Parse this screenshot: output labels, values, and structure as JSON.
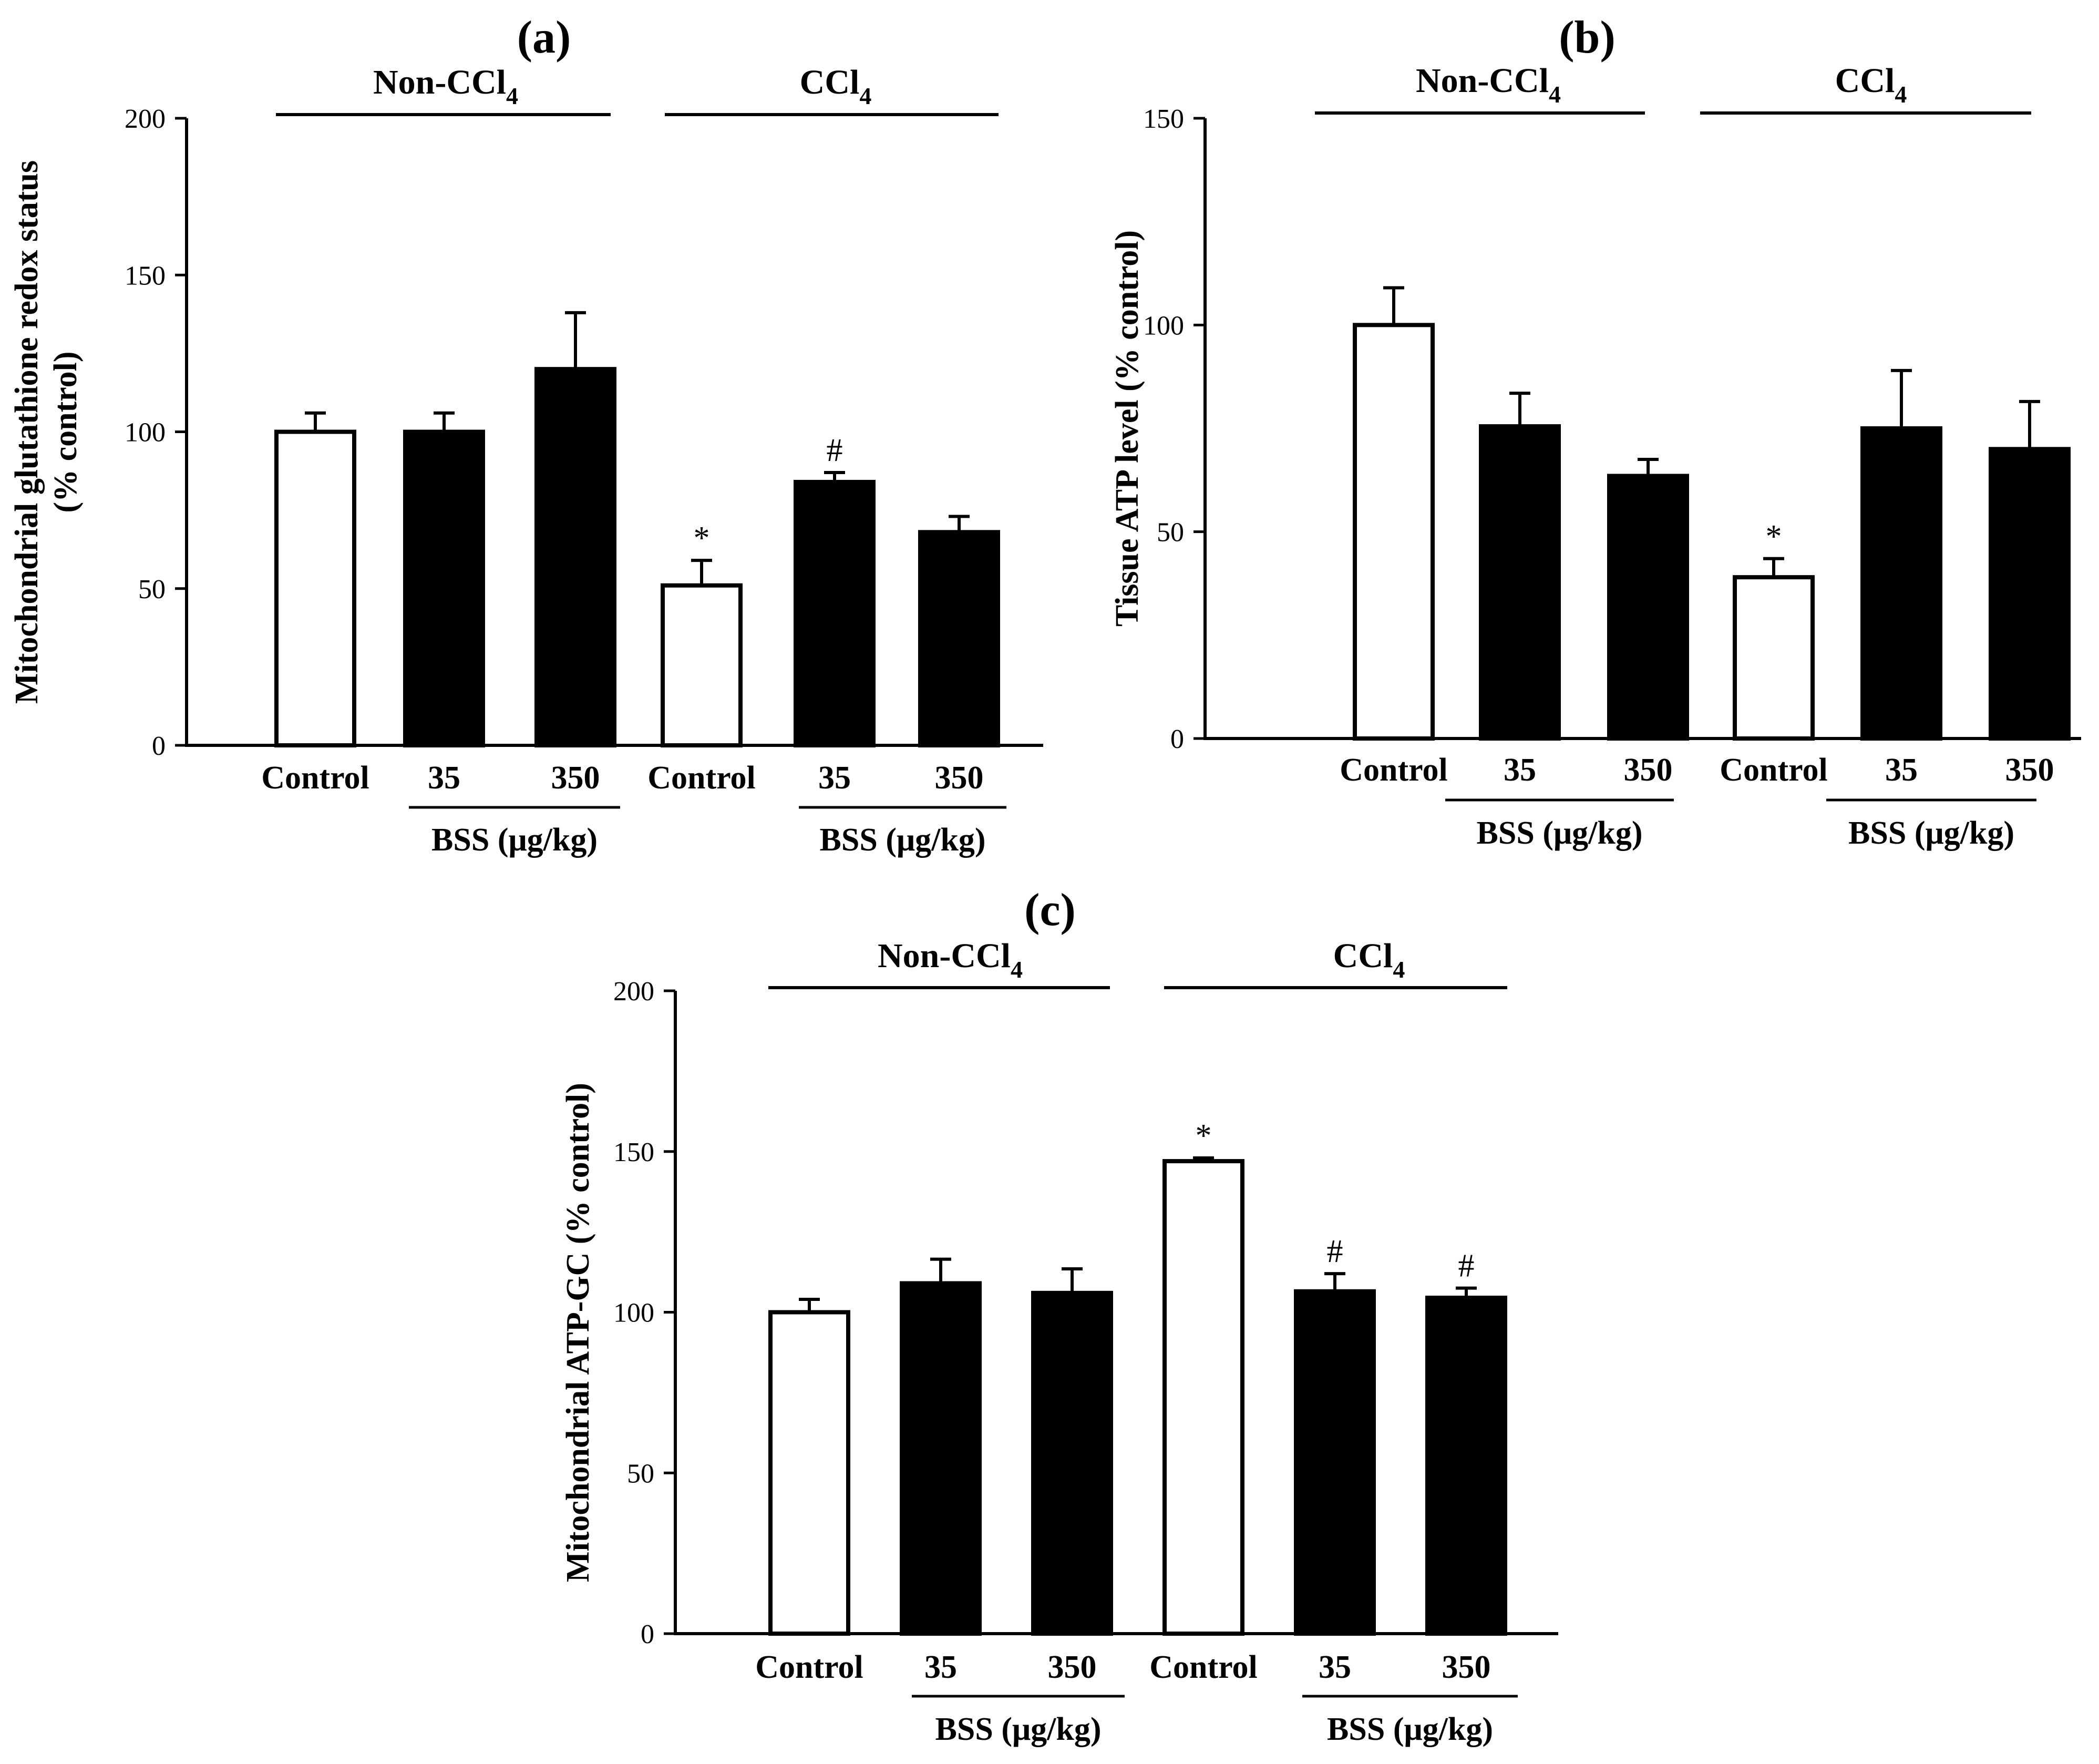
{
  "chart_data": [
    {
      "panel": "(a)",
      "type": "bar",
      "ylabel": [
        "Mitochondrial glutathione redox status",
        "(% control)"
      ],
      "ylim": [
        0,
        200
      ],
      "yticks": [
        0,
        50,
        100,
        150,
        200
      ],
      "groups": [
        {
          "label_main": "Non-CCl",
          "label_sub": "4"
        },
        {
          "label_main": "CCl",
          "label_sub": "4"
        }
      ],
      "categories": [
        "Control",
        "35",
        "350",
        "Control",
        "35",
        "350"
      ],
      "values": [
        100,
        100,
        120,
        51,
        84,
        68
      ],
      "errors": [
        6,
        6,
        18,
        8,
        3,
        5
      ],
      "fills": [
        "open",
        "filled",
        "filled",
        "open",
        "filled",
        "filled"
      ],
      "markers": [
        "",
        "",
        "",
        "*",
        "#",
        ""
      ],
      "treatment_label": "BSS (μg/kg)"
    },
    {
      "panel": "(b)",
      "type": "bar",
      "ylabel": [
        "Tissue ATP level (% control)"
      ],
      "ylim": [
        0,
        150
      ],
      "yticks": [
        0,
        50,
        100,
        150
      ],
      "groups": [
        {
          "label_main": "Non-CCl",
          "label_sub": "4"
        },
        {
          "label_main": "CCl",
          "label_sub": "4"
        }
      ],
      "categories": [
        "Control",
        "35",
        "350",
        "Control",
        "35",
        "350"
      ],
      "values": [
        100,
        75.5,
        63.5,
        39,
        75,
        70
      ],
      "errors": [
        9,
        8,
        4,
        4.5,
        14,
        11.5
      ],
      "fills": [
        "open",
        "filled",
        "filled",
        "open",
        "filled",
        "filled"
      ],
      "markers": [
        "",
        "",
        "",
        "*",
        "",
        ""
      ],
      "treatment_label": "BSS (μg/kg)"
    },
    {
      "panel": "(c)",
      "type": "bar",
      "ylabel": [
        "Mitochondrial ATP-GC (% control)"
      ],
      "ylim": [
        0,
        200
      ],
      "yticks": [
        0,
        50,
        100,
        150,
        200
      ],
      "groups": [
        {
          "label_main": "Non-CCl",
          "label_sub": "4"
        },
        {
          "label_main": "CCl",
          "label_sub": "4"
        }
      ],
      "categories": [
        "Control",
        "35",
        "350",
        "Control",
        "35",
        "350"
      ],
      "values": [
        100,
        109,
        106,
        147,
        106.5,
        104.5
      ],
      "errors": [
        4,
        7.5,
        7.5,
        1,
        5.5,
        3
      ],
      "fills": [
        "open",
        "filled",
        "filled",
        "open",
        "filled",
        "filled"
      ],
      "markers": [
        "",
        "",
        "",
        "*",
        "#",
        "#"
      ],
      "treatment_label": "BSS (μg/kg)"
    }
  ]
}
